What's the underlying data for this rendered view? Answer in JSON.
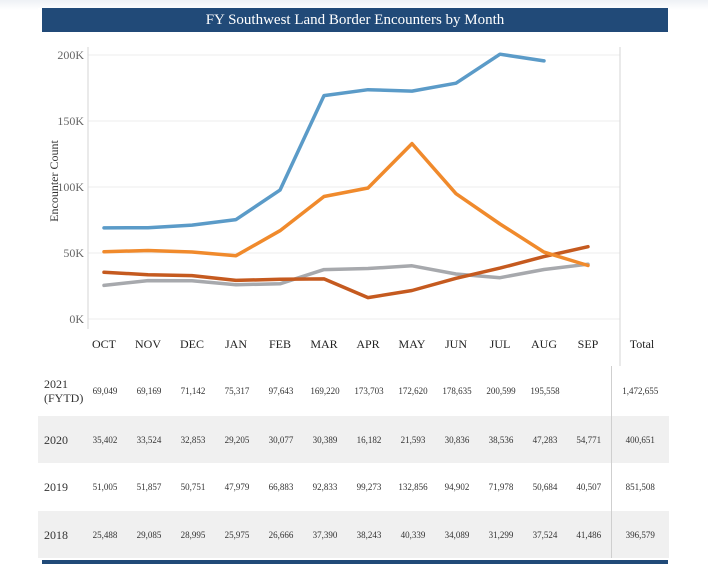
{
  "chart_data": {
    "type": "line",
    "title": "FY Southwest Land Border Encounters by Month",
    "ylabel": "Encounter Count",
    "xlabel": "",
    "categories": [
      "OCT",
      "NOV",
      "DEC",
      "JAN",
      "FEB",
      "MAR",
      "APR",
      "MAY",
      "JUN",
      "JUL",
      "AUG",
      "SEP"
    ],
    "total_label": "Total",
    "ylim": [
      0,
      200000
    ],
    "yticks": [
      0,
      50000,
      100000,
      150000,
      200000
    ],
    "ytick_labels": [
      "0K",
      "50K",
      "100K",
      "150K",
      "200K"
    ],
    "grid": true,
    "series": [
      {
        "name": "2021 (FYTD)",
        "name_lines": [
          "2021",
          "(FYTD)"
        ],
        "color": "#5b9bc8",
        "values": [
          69049,
          69169,
          71142,
          75317,
          97643,
          169220,
          173703,
          172620,
          178635,
          200599,
          195558,
          null
        ],
        "labels": [
          "69,049",
          "69,169",
          "71,142",
          "75,317",
          "97,643",
          "169,220",
          "173,703",
          "172,620",
          "178,635",
          "200,599",
          "195,558",
          ""
        ],
        "total": "1,472,655",
        "shaded": false
      },
      {
        "name": "2020",
        "name_lines": [
          "2020"
        ],
        "color": "#c55a1f",
        "values": [
          35402,
          33524,
          32853,
          29205,
          30077,
          30389,
          16182,
          21593,
          30836,
          38536,
          47283,
          54771
        ],
        "labels": [
          "35,402",
          "33,524",
          "32,853",
          "29,205",
          "30,077",
          "30,389",
          "16,182",
          "21,593",
          "30,836",
          "38,536",
          "47,283",
          "54,771"
        ],
        "total": "400,651",
        "shaded": true
      },
      {
        "name": "2019",
        "name_lines": [
          "2019"
        ],
        "color": "#f08a2c",
        "values": [
          51005,
          51857,
          50751,
          47979,
          66883,
          92833,
          99273,
          132856,
          94902,
          71978,
          50684,
          40507
        ],
        "labels": [
          "51,005",
          "51,857",
          "50,751",
          "47,979",
          "66,883",
          "92,833",
          "99,273",
          "132,856",
          "94,902",
          "71,978",
          "50,684",
          "40,507"
        ],
        "total": "851,508",
        "shaded": false
      },
      {
        "name": "2018",
        "name_lines": [
          "2018"
        ],
        "color": "#a7a9ad",
        "values": [
          25488,
          29085,
          28995,
          25975,
          26666,
          37390,
          38243,
          40339,
          34089,
          31299,
          37524,
          41486
        ],
        "labels": [
          "25,488",
          "29,085",
          "28,995",
          "25,975",
          "26,666",
          "37,390",
          "38,243",
          "40,339",
          "34,089",
          "31,299",
          "37,524",
          "41,486"
        ],
        "total": "396,579",
        "shaded": true
      }
    ]
  }
}
